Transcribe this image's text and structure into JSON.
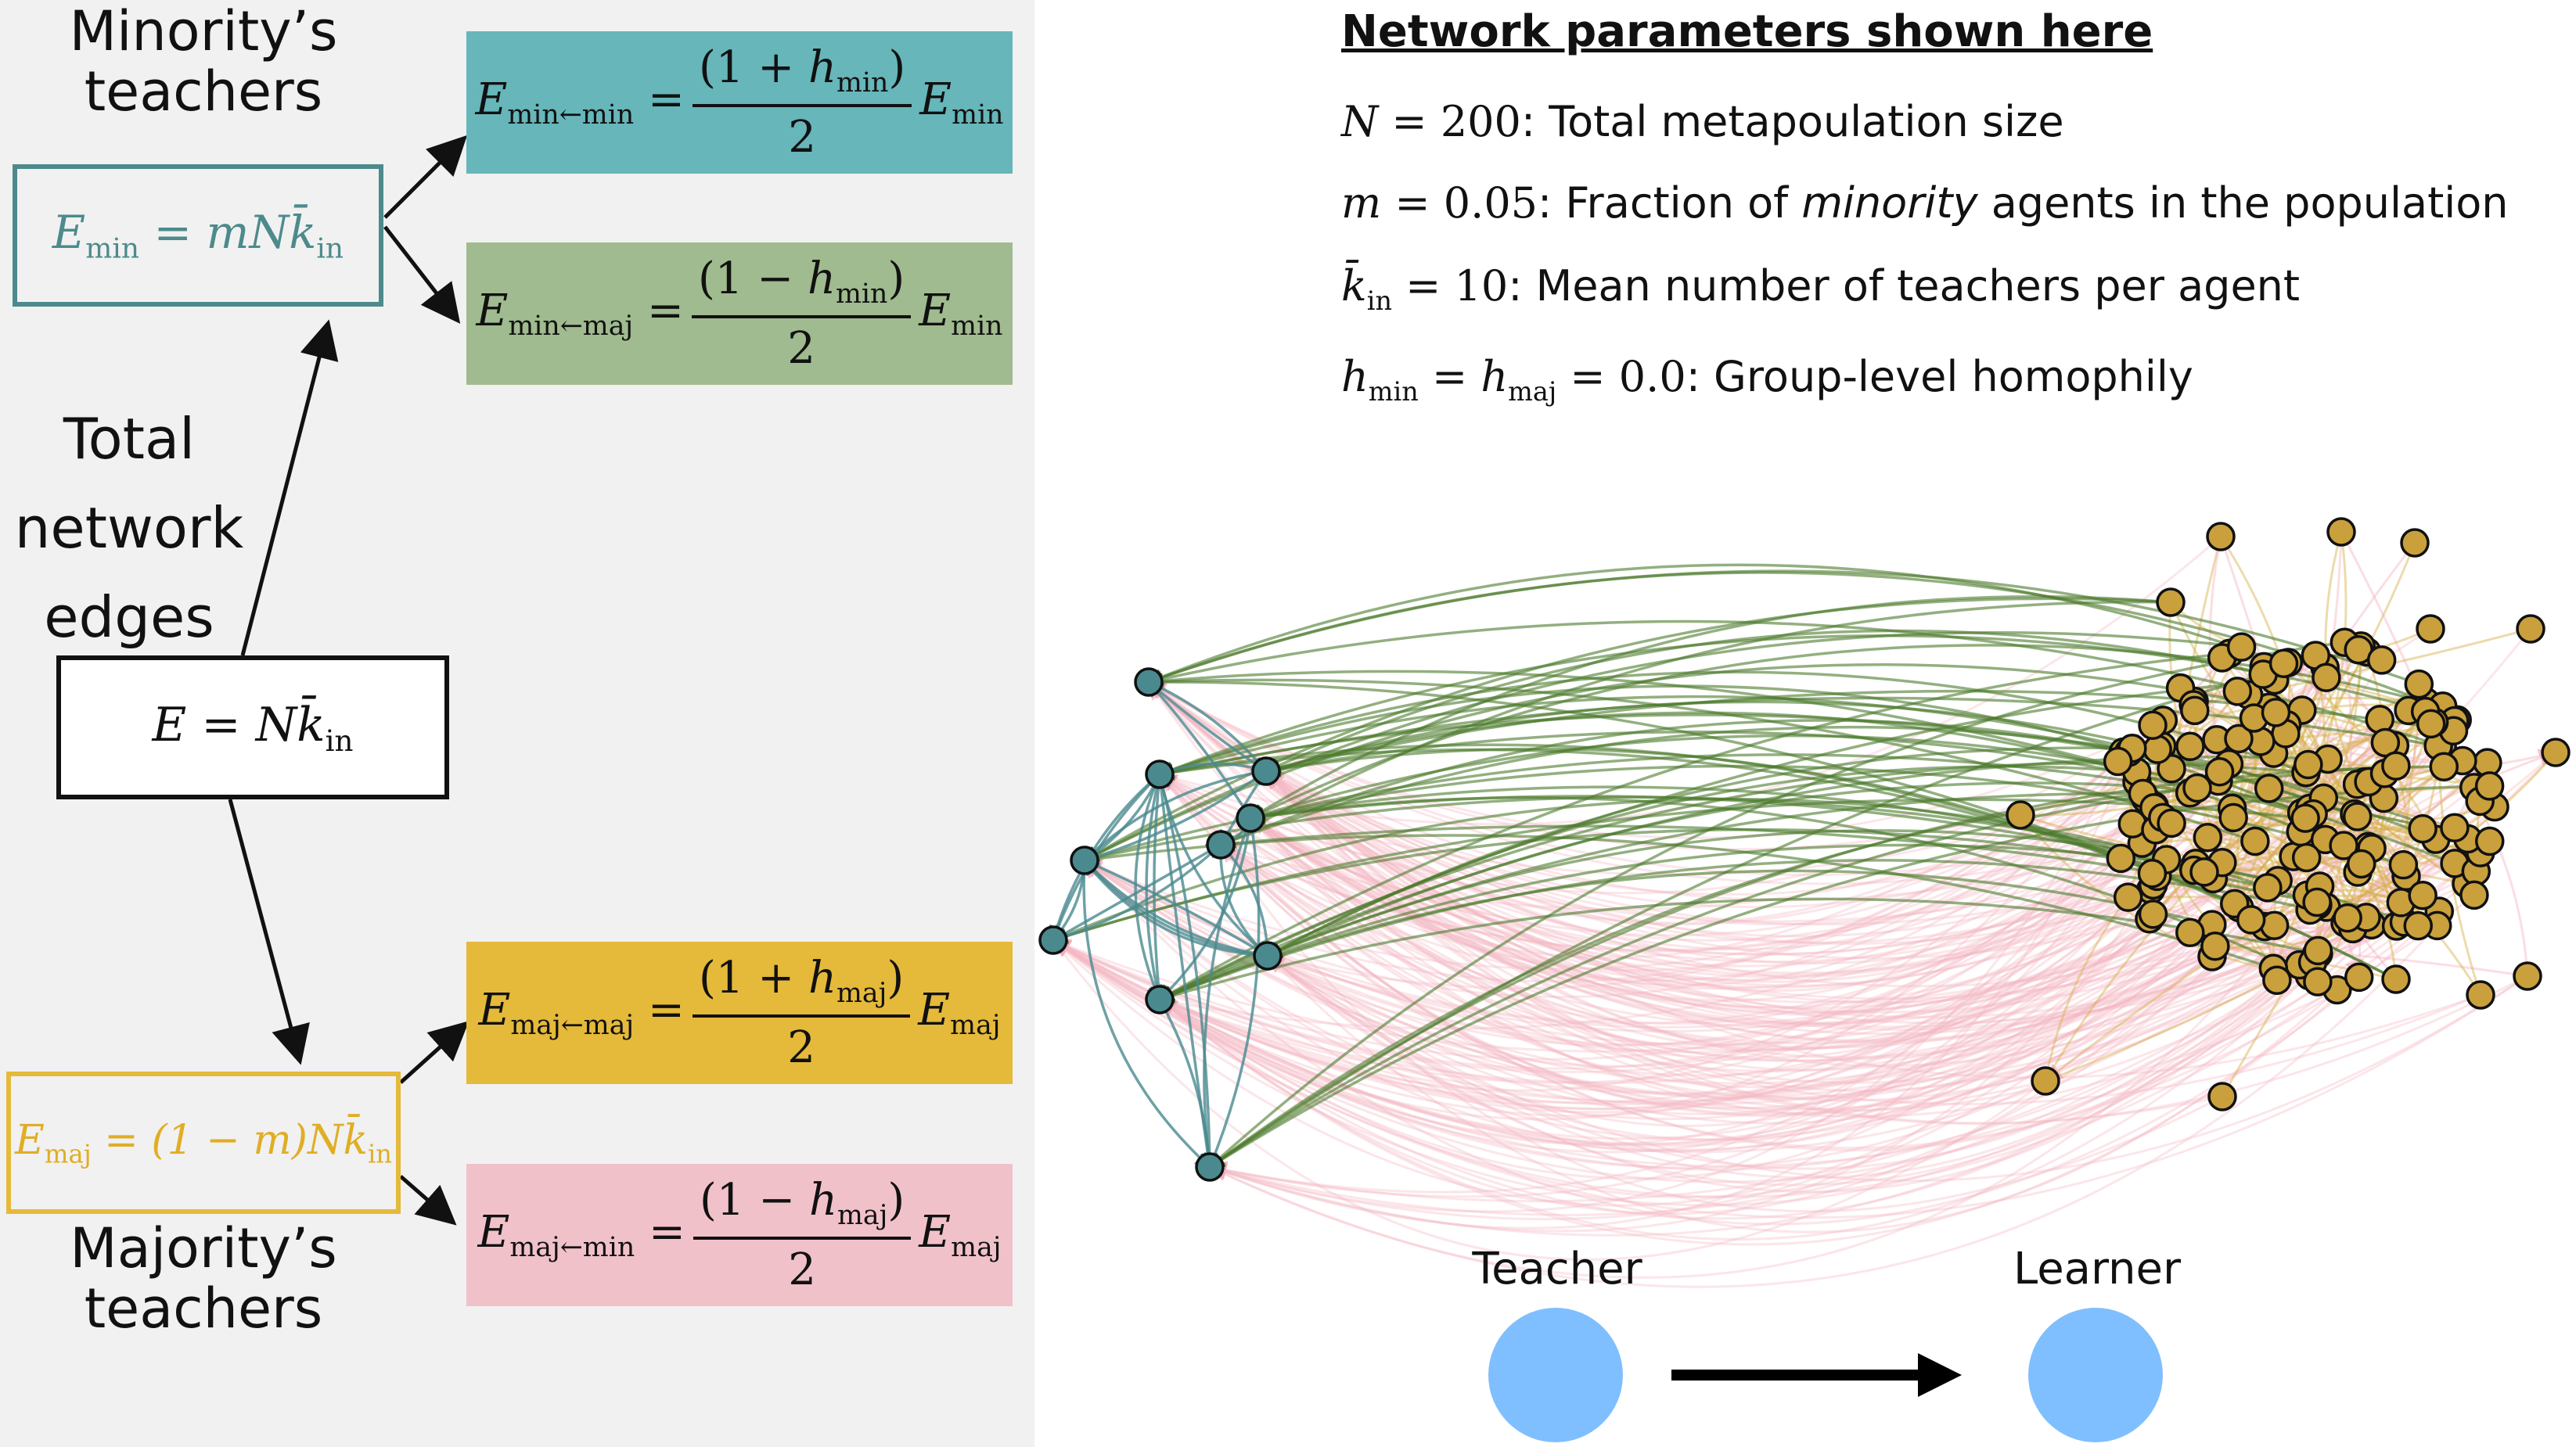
{
  "left": {
    "minority_teachers_label": "Minority’s teachers",
    "total_edges_label": "Total network edges",
    "majority_teachers_label": "Majority’s teachers",
    "total_formula": "E = Nk̄in",
    "min_formula": "Emin = mNk̄in",
    "maj_formula": "Emaj = (1 − m)Nk̄in",
    "equations": [
      {
        "lhs": "Emin←min",
        "sub": "min←min",
        "num": "(1 + hmin)",
        "den": "2",
        "rhs": "Emin",
        "color": "#66b6ba"
      },
      {
        "lhs": "Emin←maj",
        "sub": "min←maj",
        "num": "(1 − hmin)",
        "den": "2",
        "rhs": "Emin",
        "color": "#a0bb8f"
      },
      {
        "lhs": "Emaj←maj",
        "sub": "maj←maj",
        "num": "(1 + hmaj)",
        "den": "2",
        "rhs": "Emaj",
        "color": "#e5b93a"
      },
      {
        "lhs": "Emaj←min",
        "sub": "maj←min",
        "num": "(1 − hmaj)",
        "den": "2",
        "rhs": "Emaj",
        "color": "#f1c1ca"
      }
    ],
    "min_box_color": "#4d8a8c",
    "maj_box_color": "#e5b93a"
  },
  "params": {
    "title": "Network parameters shown here",
    "lines": [
      "N = 200: Total metapoulation size",
      "m = 0.05: Fraction of minority agents in the population",
      "k̄in = 10: Mean number of teachers per agent",
      "hmin = hmaj = 0.0: Group-level homophily"
    ]
  },
  "legend": {
    "teacher": "Teacher",
    "learner": "Learner",
    "node_color": "#7fbfff"
  },
  "network": {
    "minority_color": "#4a8a8e",
    "majority_color": "#c9a03c",
    "cross_edge_pink": "#f4b6c2",
    "cross_edge_green": "#4b7a2c",
    "majority_edge_color": "#d4b04a",
    "minority_count": 10,
    "majority_count": 190
  }
}
